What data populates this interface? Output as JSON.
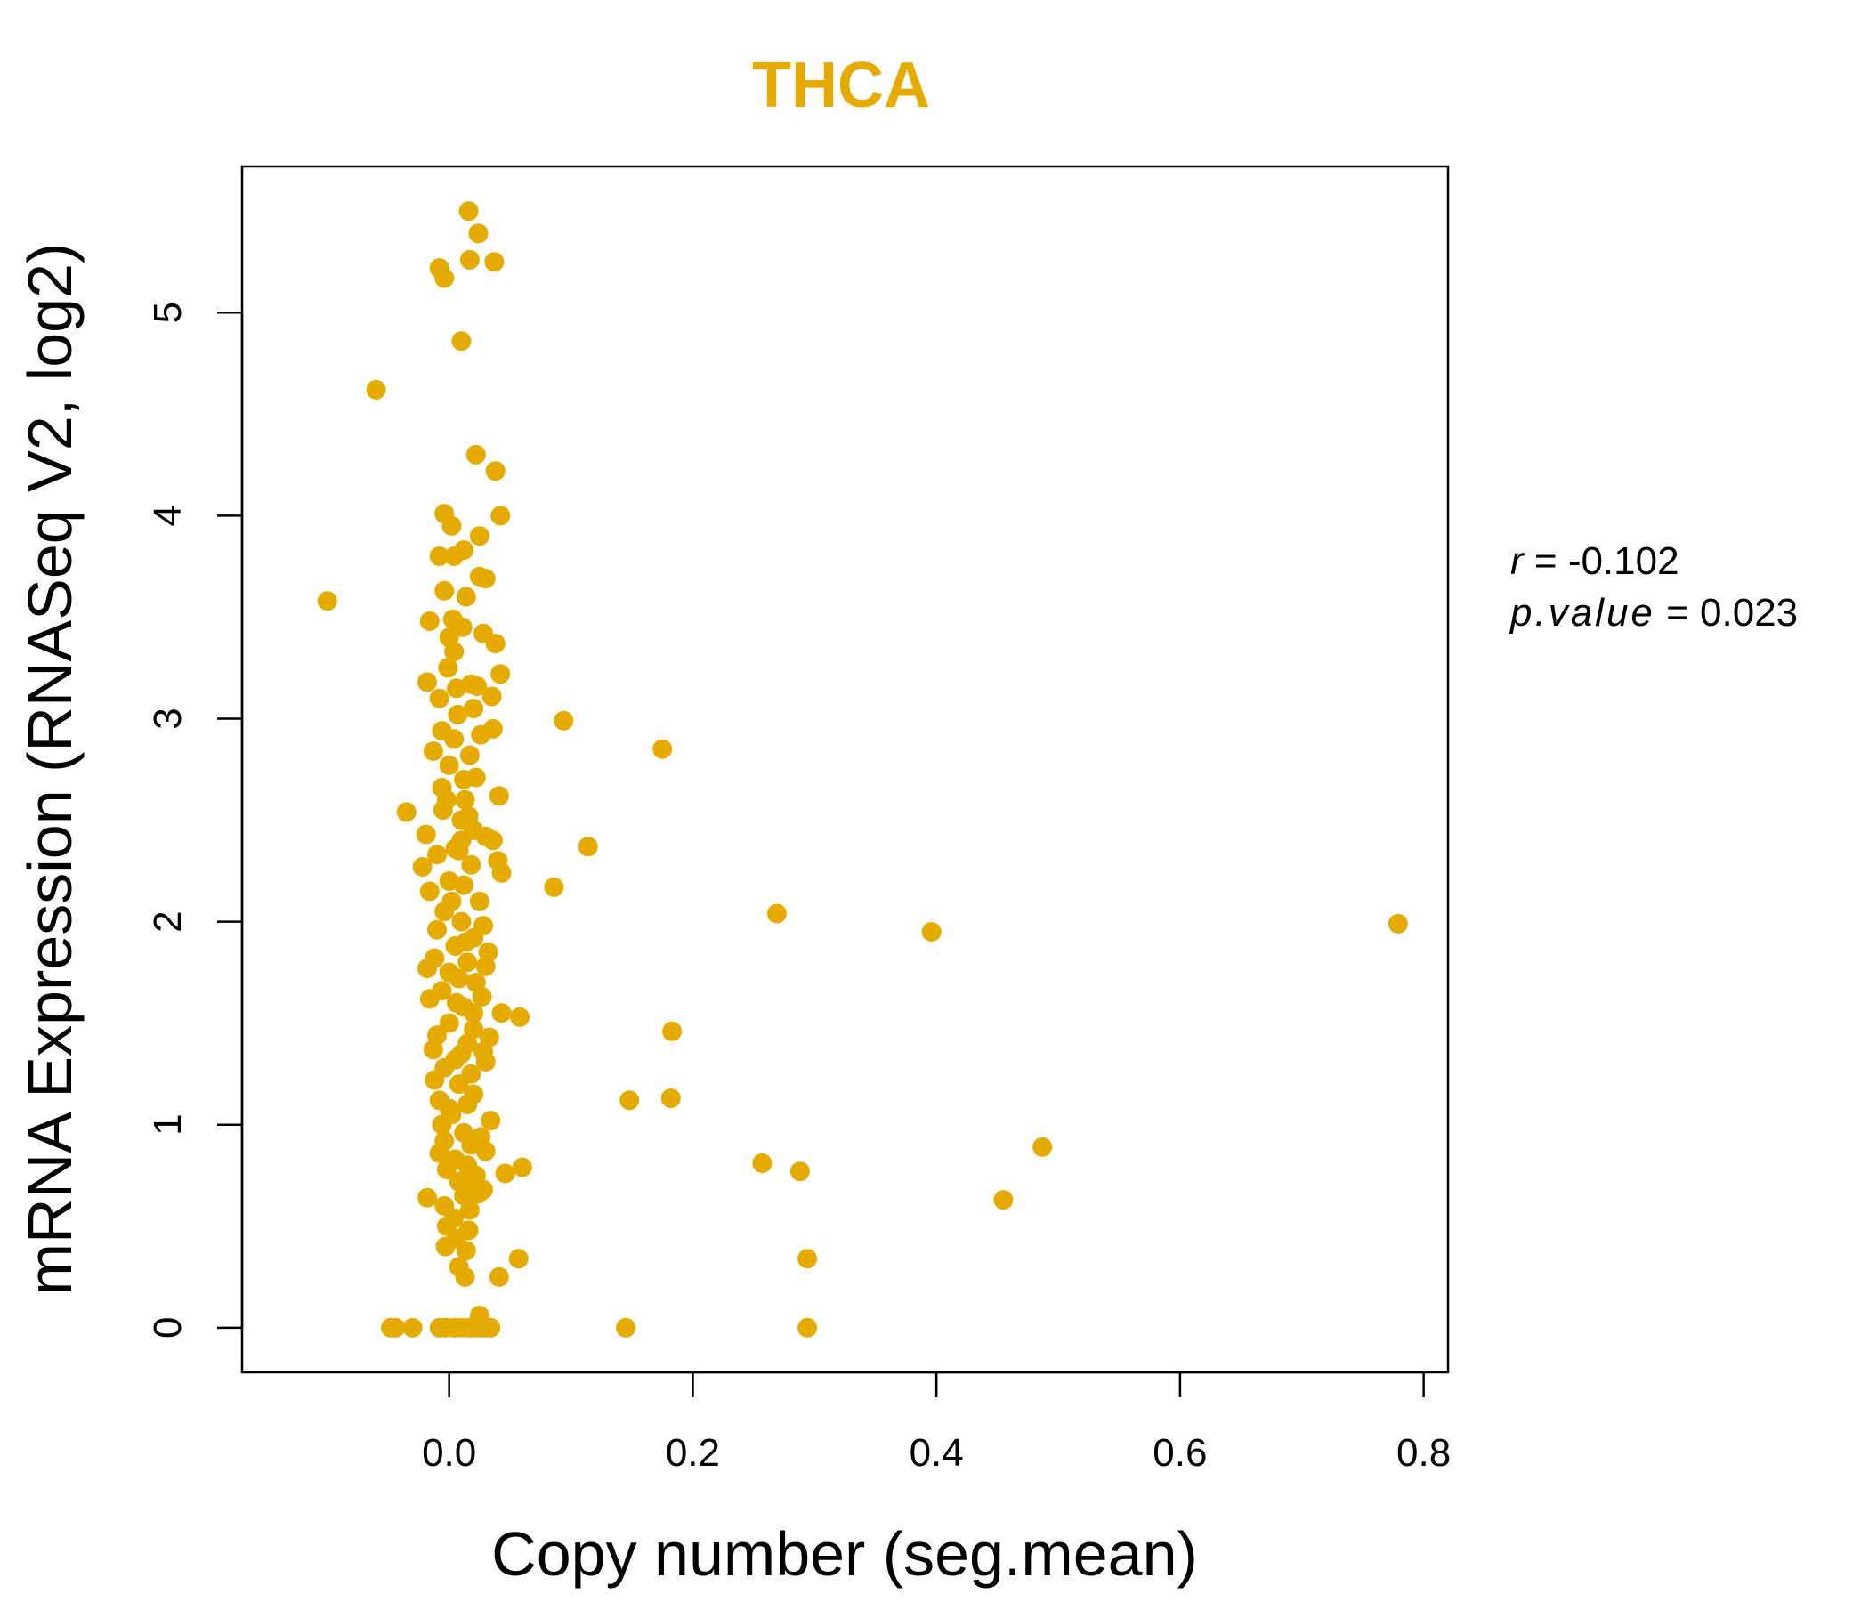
{
  "chart_data": {
    "type": "scatter",
    "title": "THCA",
    "xlabel": "Copy number (seg.mean)",
    "ylabel": "mRNA Expression (RNASeq V2, log2)",
    "xlim": [
      -0.17,
      0.82
    ],
    "ylim": [
      -0.22,
      5.72
    ],
    "xticks": [
      0.0,
      0.2,
      0.4,
      0.6,
      0.8
    ],
    "xtick_labels": [
      "0.0",
      "0.2",
      "0.4",
      "0.6",
      "0.8"
    ],
    "yticks": [
      0,
      1,
      2,
      3,
      4,
      5
    ],
    "ytick_labels": [
      "0",
      "1",
      "2",
      "3",
      "4",
      "5"
    ],
    "point_color": "#E5AB00",
    "title_color": "#E5AB00",
    "stats": {
      "r_symbol": "r",
      "r_value": "-0.102",
      "p_symbol": "p.value",
      "p_value": "0.023"
    },
    "points": [
      [
        -0.1,
        3.58
      ],
      [
        -0.06,
        4.62
      ],
      [
        -0.035,
        2.54
      ],
      [
        0.094,
        2.99
      ],
      [
        0.175,
        2.85
      ],
      [
        0.114,
        2.37
      ],
      [
        0.086,
        2.17
      ],
      [
        0.269,
        2.04
      ],
      [
        0.396,
        1.95
      ],
      [
        0.779,
        1.99
      ],
      [
        0.183,
        1.46
      ],
      [
        0.148,
        1.12
      ],
      [
        0.182,
        1.13
      ],
      [
        0.257,
        0.81
      ],
      [
        0.288,
        0.77
      ],
      [
        0.487,
        0.89
      ],
      [
        0.455,
        0.63
      ],
      [
        0.294,
        0.34
      ],
      [
        0.294,
        0.0
      ],
      [
        0.145,
        0.0
      ],
      [
        0.058,
        1.53
      ],
      [
        0.06,
        0.79
      ],
      [
        0.046,
        0.76
      ],
      [
        0.057,
        0.34
      ],
      [
        0.041,
        0.25
      ],
      [
        -0.048,
        0.0
      ],
      [
        -0.044,
        0.0
      ],
      [
        -0.03,
        0.0
      ],
      [
        -0.008,
        0.0
      ],
      [
        -0.003,
        0.0
      ],
      [
        0.004,
        0.0
      ],
      [
        0.01,
        0.0
      ],
      [
        0.016,
        0.0
      ],
      [
        0.021,
        0.0
      ],
      [
        0.026,
        0.0
      ],
      [
        0.03,
        0.0
      ],
      [
        0.034,
        0.0
      ],
      [
        0.025,
        0.06
      ],
      [
        0.016,
        5.5
      ],
      [
        0.024,
        5.39
      ],
      [
        -0.008,
        5.22
      ],
      [
        0.017,
        5.26
      ],
      [
        0.037,
        5.25
      ],
      [
        -0.004,
        5.17
      ],
      [
        0.01,
        4.86
      ],
      [
        0.022,
        4.3
      ],
      [
        0.038,
        4.22
      ],
      [
        -0.004,
        4.01
      ],
      [
        0.042,
        4.0
      ],
      [
        0.002,
        3.95
      ],
      [
        0.025,
        3.9
      ],
      [
        0.012,
        3.83
      ],
      [
        -0.008,
        3.8
      ],
      [
        0.004,
        3.8
      ],
      [
        0.025,
        3.7
      ],
      [
        0.03,
        3.69
      ],
      [
        -0.004,
        3.63
      ],
      [
        0.014,
        3.6
      ],
      [
        -0.016,
        3.48
      ],
      [
        0.003,
        3.49
      ],
      [
        0.011,
        3.45
      ],
      [
        0.028,
        3.42
      ],
      [
        0.0,
        3.4
      ],
      [
        0.038,
        3.37
      ],
      [
        0.004,
        3.33
      ],
      [
        0.042,
        3.22
      ],
      [
        -0.001,
        3.25
      ],
      [
        0.018,
        3.17
      ],
      [
        0.023,
        3.16
      ],
      [
        -0.018,
        3.18
      ],
      [
        0.035,
        3.11
      ],
      [
        -0.008,
        3.1
      ],
      [
        0.007,
        3.02
      ],
      [
        0.02,
        3.05
      ],
      [
        -0.006,
        2.94
      ],
      [
        0.036,
        2.95
      ],
      [
        0.026,
        2.92
      ],
      [
        -0.013,
        2.84
      ],
      [
        0.017,
        2.82
      ],
      [
        0.0,
        2.77
      ],
      [
        0.022,
        2.71
      ],
      [
        -0.006,
        2.66
      ],
      [
        0.041,
        2.62
      ],
      [
        0.013,
        2.6
      ],
      [
        -0.005,
        2.55
      ],
      [
        0.01,
        2.5
      ],
      [
        0.02,
        2.45
      ],
      [
        -0.019,
        2.43
      ],
      [
        0.03,
        2.42
      ],
      [
        0.036,
        2.4
      ],
      [
        0.005,
        2.36
      ],
      [
        -0.01,
        2.33
      ],
      [
        0.04,
        2.3
      ],
      [
        0.018,
        2.28
      ],
      [
        -0.022,
        2.27
      ],
      [
        0.043,
        2.24
      ],
      [
        0.0,
        2.2
      ],
      [
        0.012,
        2.18
      ],
      [
        -0.016,
        2.15
      ],
      [
        0.025,
        2.1
      ],
      [
        -0.004,
        2.05
      ],
      [
        0.01,
        2.0
      ],
      [
        0.028,
        1.98
      ],
      [
        -0.01,
        1.96
      ],
      [
        0.02,
        1.92
      ],
      [
        0.005,
        1.88
      ],
      [
        0.032,
        1.85
      ],
      [
        -0.012,
        1.82
      ],
      [
        0.015,
        1.8
      ],
      [
        0.03,
        1.78
      ],
      [
        -0.018,
        1.77
      ],
      [
        0.008,
        1.72
      ],
      [
        0.022,
        1.7
      ],
      [
        -0.006,
        1.66
      ],
      [
        0.027,
        1.63
      ],
      [
        -0.016,
        1.62
      ],
      [
        0.012,
        1.58
      ],
      [
        0.043,
        1.55
      ],
      [
        0.0,
        1.5
      ],
      [
        0.02,
        1.47
      ],
      [
        -0.01,
        1.44
      ],
      [
        0.033,
        1.43
      ],
      [
        0.015,
        1.4
      ],
      [
        0.028,
        1.36
      ],
      [
        -0.013,
        1.37
      ],
      [
        0.005,
        1.32
      ],
      [
        0.03,
        1.31
      ],
      [
        -0.004,
        1.28
      ],
      [
        0.018,
        1.25
      ],
      [
        -0.012,
        1.22
      ],
      [
        0.008,
        1.2
      ],
      [
        0.02,
        1.15
      ],
      [
        -0.008,
        1.12
      ],
      [
        0.015,
        1.1
      ],
      [
        0.0,
        1.08
      ],
      [
        0.034,
        1.02
      ],
      [
        -0.006,
        1.0
      ],
      [
        0.012,
        0.96
      ],
      [
        0.026,
        0.94
      ],
      [
        -0.004,
        0.92
      ],
      [
        0.018,
        0.9
      ],
      [
        -0.008,
        0.86
      ],
      [
        0.03,
        0.87
      ],
      [
        0.005,
        0.83
      ],
      [
        0.015,
        0.8
      ],
      [
        -0.002,
        0.78
      ],
      [
        0.022,
        0.75
      ],
      [
        0.008,
        0.72
      ],
      [
        0.028,
        0.68
      ],
      [
        -0.018,
        0.64
      ],
      [
        0.012,
        0.65
      ],
      [
        0.024,
        0.66
      ],
      [
        -0.004,
        0.6
      ],
      [
        0.017,
        0.58
      ],
      [
        0.004,
        0.54
      ],
      [
        -0.002,
        0.5
      ],
      [
        0.016,
        0.48
      ],
      [
        0.006,
        0.44
      ],
      [
        -0.003,
        0.4
      ],
      [
        0.014,
        0.38
      ],
      [
        0.008,
        0.3
      ],
      [
        0.013,
        0.25
      ],
      [
        0.004,
        2.9
      ],
      [
        0.012,
        2.7
      ],
      [
        -0.002,
        2.6
      ],
      [
        0.016,
        2.52
      ],
      [
        0.008,
        2.35
      ],
      [
        0.002,
        2.1
      ],
      [
        0.014,
        1.9
      ],
      [
        0.006,
        1.6
      ],
      [
        0.01,
        1.35
      ],
      [
        0.002,
        1.05
      ],
      [
        0.016,
        0.7
      ],
      [
        0.006,
        3.15
      ],
      [
        0.01,
        2.4
      ],
      [
        0.0,
        1.75
      ],
      [
        0.02,
        1.55
      ]
    ]
  }
}
